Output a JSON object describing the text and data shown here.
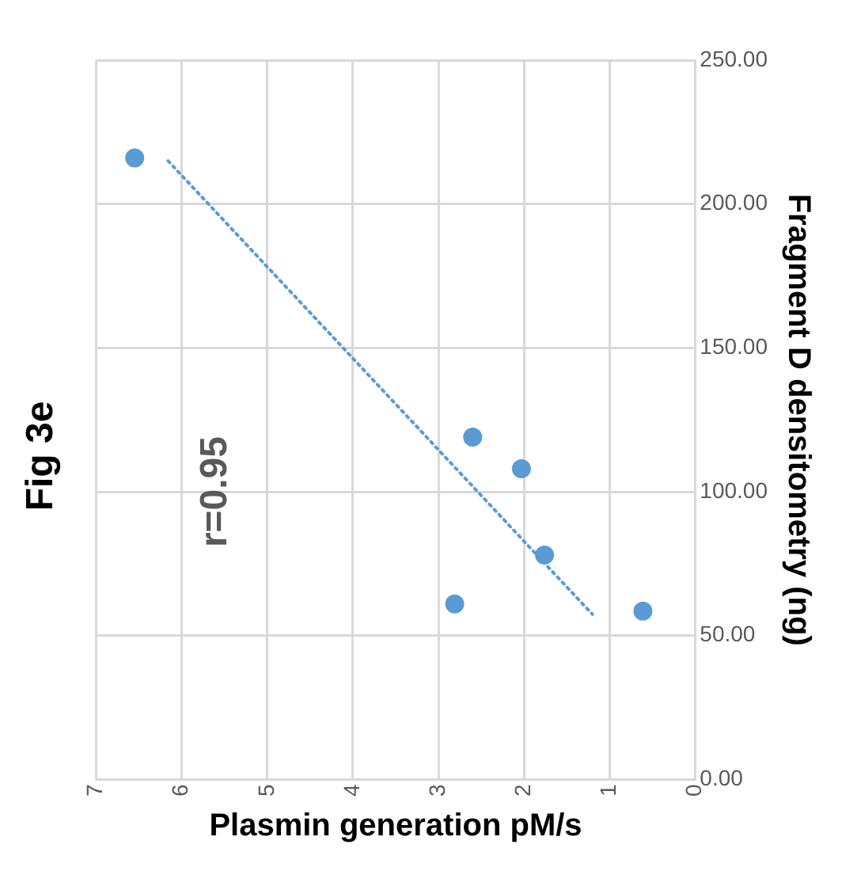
{
  "chart_data": {
    "type": "scatter",
    "title": "Fig 3e",
    "xlabel": "Plasmin generation pM/s",
    "ylabel": "Fragment D densitometry (ng)",
    "xlim": [
      7,
      0
    ],
    "xticks": [
      7,
      6,
      5,
      4,
      3,
      2,
      1,
      0
    ],
    "ylim": [
      0,
      250
    ],
    "yticks": [
      {
        "value": 0,
        "label": "0.00"
      },
      {
        "value": 50,
        "label": "50.00"
      },
      {
        "value": 100,
        "label": "100.00"
      },
      {
        "value": 150,
        "label": "150.00"
      },
      {
        "value": 200,
        "label": "200.00"
      },
      {
        "value": 250,
        "label": "250.00"
      }
    ],
    "marker": "circle",
    "series": [
      {
        "type": "scatter",
        "color": "#5b9bd5",
        "x": [
          6.55,
          2.6,
          2.03,
          1.76,
          2.81,
          0.61
        ],
        "values": [
          216,
          119,
          108,
          78,
          61,
          58.5
        ]
      },
      {
        "type": "line",
        "color": "#5b9bd5",
        "line_style": "dotted",
        "marker": "none",
        "x": [
          6.16,
          1.2
        ],
        "values": [
          215,
          57.4
        ]
      }
    ],
    "annotations": [
      "r=0.95"
    ],
    "grid": true,
    "legend": false
  }
}
